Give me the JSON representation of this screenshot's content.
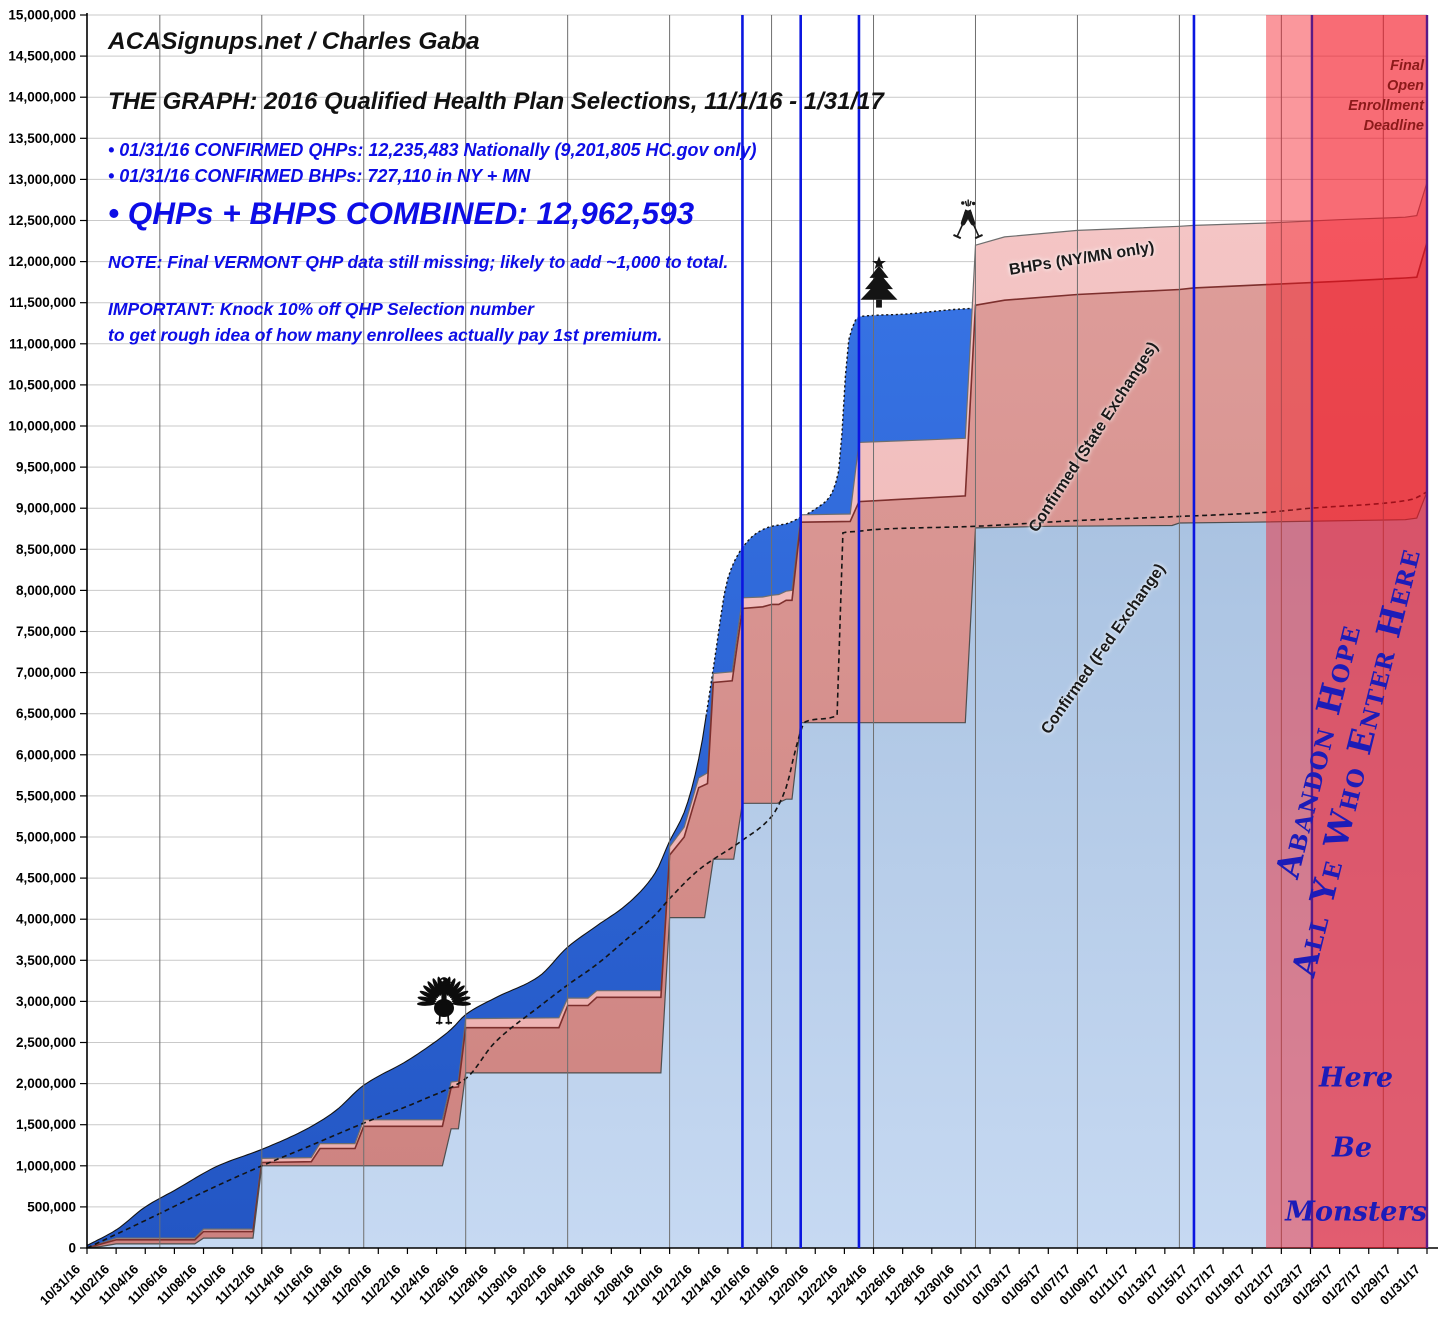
{
  "header": {
    "site_credit": "ACASignups.net / Charles Gaba",
    "main_title": "THE GRAPH: 2016 Qualified Health Plan Selections, 11/1/16 - 1/31/17",
    "bullet_qhp": "• 01/31/16 CONFIRMED QHPs: 12,235,483 Nationally (9,201,805 HC.gov only)",
    "bullet_bhp": "• 01/31/16 CONFIRMED BHPs: 727,110 in NY + MN",
    "bullet_combined": "• QHPs + BHPS COMBINED: 12,962,593",
    "note": "NOTE: Final VERMONT QHP data still missing; likely to add ~1,000 to total.",
    "important_line1": "IMPORTANT: Knock 10% off QHP Selection number",
    "important_line2": "to get rough idea of how many enrollees actually pay 1st premium."
  },
  "annotations": {
    "deadline_label": "Final\nOpen\nEnrollment\nDeadline",
    "abandon_line1": "Abandon Hope",
    "abandon_line2": "All Ye Who Enter Here",
    "monsters_line1": "Here",
    "monsters_line2": "Be",
    "monsters_line3": "Monsters",
    "area_label_bhp": "BHPs (NY/MN only)",
    "area_label_state": "Confirmed (State Exchanges)",
    "area_label_fed": "Confirmed (Fed Exchange)"
  },
  "chart_data": {
    "type": "area",
    "title": "THE GRAPH: 2016 Qualified Health Plan Selections, 11/1/16 - 1/31/17",
    "x_unit": "days since 10/31/16",
    "x_tick_labels": [
      "10/31/16",
      "11/02/16",
      "11/04/16",
      "11/06/16",
      "11/08/16",
      "11/10/16",
      "11/12/16",
      "11/14/16",
      "11/16/16",
      "11/18/16",
      "11/20/16",
      "11/22/16",
      "11/24/16",
      "11/26/16",
      "11/28/16",
      "11/30/16",
      "12/02/16",
      "12/04/16",
      "12/06/16",
      "12/08/16",
      "12/10/16",
      "12/12/16",
      "12/14/16",
      "12/16/16",
      "12/18/16",
      "12/20/16",
      "12/22/16",
      "12/24/16",
      "12/26/16",
      "12/28/16",
      "12/30/16",
      "01/01/17",
      "01/03/17",
      "01/05/17",
      "01/07/17",
      "01/09/17",
      "01/11/17",
      "01/13/17",
      "01/15/17",
      "01/17/17",
      "01/19/17",
      "01/21/17",
      "01/23/17",
      "01/25/17",
      "01/27/17",
      "01/29/17",
      "01/31/17"
    ],
    "x_tick_step_days": 2,
    "y_tick_labels": [
      "15,000,000",
      "14,500,000",
      "14,000,000",
      "13,500,000",
      "13,000,000",
      "12,500,000",
      "12,000,000",
      "11,500,000",
      "11,000,000",
      "10,500,000",
      "10,000,000",
      "9,500,000",
      "9,000,000",
      "8,500,000",
      "8,000,000",
      "7,500,000",
      "7,000,000",
      "6,500,000",
      "6,000,000",
      "5,500,000",
      "5,000,000",
      "4,500,000",
      "4,000,000",
      "3,500,000",
      "3,000,000",
      "2,500,000",
      "2,000,000",
      "1,500,000",
      "1,000,000",
      "500,000",
      "0"
    ],
    "ylim": [
      0,
      15000000
    ],
    "y_gridline_step": 500000,
    "x_gridline_every_days": 7,
    "x_first_gridline_day": 5,
    "values_unit": "millions of QHP selections",
    "series": [
      {
        "name": "Estimated total QHPs (projection)",
        "key": "estimate",
        "points": [
          [
            0,
            0.03
          ],
          [
            2,
            0.22
          ],
          [
            4,
            0.5
          ],
          [
            6,
            0.7
          ],
          [
            9,
            1.0
          ],
          [
            12,
            1.2
          ],
          [
            15,
            1.44
          ],
          [
            17,
            1.66
          ],
          [
            19,
            1.98
          ],
          [
            22,
            2.28
          ],
          [
            24,
            2.52
          ],
          [
            25,
            2.66
          ],
          [
            26,
            2.84
          ],
          [
            28,
            3.04
          ],
          [
            31,
            3.3
          ],
          [
            33,
            3.66
          ],
          [
            35,
            3.92
          ],
          [
            37,
            4.17
          ],
          [
            39,
            4.56
          ],
          [
            40,
            4.95
          ],
          [
            41,
            5.3
          ],
          [
            42,
            5.95
          ],
          [
            43,
            7.05
          ],
          [
            44,
            8.15
          ],
          [
            45,
            8.52
          ],
          [
            46,
            8.7
          ],
          [
            47,
            8.78
          ],
          [
            48,
            8.81
          ],
          [
            49,
            8.89
          ],
          [
            50,
            8.99
          ],
          [
            51,
            9.14
          ],
          [
            51.6,
            9.45
          ],
          [
            52.3,
            11.05
          ],
          [
            53,
            11.33
          ],
          [
            56,
            11.36
          ],
          [
            61,
            11.43
          ],
          [
            92,
            11.45
          ]
        ]
      },
      {
        "name": "BHPs (NY/MN only)",
        "key": "bhp_top",
        "points": [
          [
            0,
            0.0
          ],
          [
            1,
            0.06
          ],
          [
            2,
            0.12
          ],
          [
            7.4,
            0.12
          ],
          [
            8,
            0.23
          ],
          [
            11.4,
            0.23
          ],
          [
            12,
            1.09
          ],
          [
            15.4,
            1.1
          ],
          [
            16,
            1.27
          ],
          [
            18.4,
            1.27
          ],
          [
            19,
            1.56
          ],
          [
            24.4,
            1.56
          ],
          [
            25,
            2.02
          ],
          [
            25.5,
            2.03
          ],
          [
            26,
            2.79
          ],
          [
            32.4,
            2.8
          ],
          [
            33,
            3.04
          ],
          [
            34.4,
            3.04
          ],
          [
            35,
            3.13
          ],
          [
            39.4,
            3.13
          ],
          [
            40,
            4.88
          ],
          [
            41,
            5.12
          ],
          [
            42,
            5.72
          ],
          [
            42.6,
            5.78
          ],
          [
            43,
            6.99
          ],
          [
            44.3,
            7.01
          ],
          [
            45,
            7.91
          ],
          [
            46.4,
            7.92
          ],
          [
            47,
            7.94
          ],
          [
            47.5,
            7.95
          ],
          [
            48,
            7.99
          ],
          [
            48.4,
            8.0
          ],
          [
            49,
            8.92
          ],
          [
            52.4,
            8.93
          ],
          [
            53,
            9.8
          ],
          [
            56,
            9.82
          ],
          [
            60.3,
            9.85
          ],
          [
            61,
            12.2
          ],
          [
            63,
            12.3
          ],
          [
            68,
            12.38
          ],
          [
            75,
            12.43
          ],
          [
            76,
            12.44
          ],
          [
            81,
            12.47
          ],
          [
            86,
            12.51
          ],
          [
            90.5,
            12.54
          ],
          [
            91.3,
            12.56
          ],
          [
            92,
            12.963
          ]
        ]
      },
      {
        "name": "Confirmed (State Exchanges)",
        "key": "state_top",
        "points": [
          [
            0,
            0.0
          ],
          [
            1,
            0.05
          ],
          [
            2,
            0.1
          ],
          [
            7.4,
            0.1
          ],
          [
            8,
            0.2
          ],
          [
            11.4,
            0.2
          ],
          [
            12,
            1.04
          ],
          [
            15.4,
            1.05
          ],
          [
            16,
            1.21
          ],
          [
            18.4,
            1.21
          ],
          [
            19,
            1.48
          ],
          [
            24.4,
            1.48
          ],
          [
            25,
            1.95
          ],
          [
            25.5,
            1.96
          ],
          [
            26,
            2.68
          ],
          [
            32.4,
            2.68
          ],
          [
            33,
            2.95
          ],
          [
            34.4,
            2.95
          ],
          [
            35,
            3.05
          ],
          [
            39.4,
            3.05
          ],
          [
            40,
            4.78
          ],
          [
            41,
            5.0
          ],
          [
            42,
            5.6
          ],
          [
            42.6,
            5.65
          ],
          [
            43,
            6.88
          ],
          [
            44.3,
            6.9
          ],
          [
            45,
            7.78
          ],
          [
            46.4,
            7.8
          ],
          [
            47,
            7.83
          ],
          [
            47.5,
            7.83
          ],
          [
            48,
            7.88
          ],
          [
            48.4,
            7.88
          ],
          [
            49,
            8.83
          ],
          [
            52.4,
            8.84
          ],
          [
            53,
            9.08
          ],
          [
            56,
            9.11
          ],
          [
            60.3,
            9.15
          ],
          [
            61,
            11.47
          ],
          [
            63,
            11.53
          ],
          [
            68,
            11.6
          ],
          [
            75,
            11.66
          ],
          [
            76,
            11.68
          ],
          [
            81,
            11.72
          ],
          [
            86,
            11.76
          ],
          [
            90.5,
            11.8
          ],
          [
            91.3,
            11.81
          ],
          [
            92,
            12.235
          ]
        ]
      },
      {
        "name": "Confirmed (Fed Exchange)",
        "key": "fed",
        "points": [
          [
            0,
            0.0
          ],
          [
            1,
            0.02
          ],
          [
            2,
            0.05
          ],
          [
            7.4,
            0.05
          ],
          [
            8,
            0.12
          ],
          [
            11.4,
            0.12
          ],
          [
            12,
            1.0
          ],
          [
            24.4,
            1.0
          ],
          [
            25,
            1.45
          ],
          [
            25.5,
            1.45
          ],
          [
            26,
            2.13
          ],
          [
            39.4,
            2.13
          ],
          [
            40,
            4.02
          ],
          [
            42.4,
            4.02
          ],
          [
            43,
            4.73
          ],
          [
            44.4,
            4.73
          ],
          [
            45,
            5.41
          ],
          [
            47.4,
            5.41
          ],
          [
            48,
            5.46
          ],
          [
            48.4,
            5.46
          ],
          [
            49,
            6.39
          ],
          [
            60.3,
            6.39
          ],
          [
            61,
            8.76
          ],
          [
            66,
            8.78
          ],
          [
            74.5,
            8.79
          ],
          [
            75,
            8.82
          ],
          [
            80,
            8.83
          ],
          [
            90.5,
            8.86
          ],
          [
            91.3,
            8.88
          ],
          [
            92,
            9.2
          ]
        ]
      },
      {
        "name": "HC.gov estimate (dashed)",
        "key": "dashed",
        "points": [
          [
            0,
            0.0
          ],
          [
            3,
            0.25
          ],
          [
            5,
            0.42
          ],
          [
            8,
            0.68
          ],
          [
            12,
            1.0
          ],
          [
            15,
            1.22
          ],
          [
            19,
            1.52
          ],
          [
            23,
            1.8
          ],
          [
            26,
            2.06
          ],
          [
            28,
            2.5
          ],
          [
            31,
            2.93
          ],
          [
            33,
            3.2
          ],
          [
            35,
            3.45
          ],
          [
            37,
            3.75
          ],
          [
            39,
            4.05
          ],
          [
            40,
            4.25
          ],
          [
            42,
            4.6
          ],
          [
            45,
            4.96
          ],
          [
            47,
            5.25
          ],
          [
            48,
            5.6
          ],
          [
            48.7,
            6.1
          ],
          [
            49.3,
            6.4
          ],
          [
            51.5,
            6.48
          ],
          [
            51.9,
            8.7
          ],
          [
            53,
            8.72
          ],
          [
            54,
            8.74
          ],
          [
            61,
            8.78
          ],
          [
            68,
            8.85
          ],
          [
            75,
            8.9
          ],
          [
            81,
            8.95
          ],
          [
            84,
            9.0
          ],
          [
            89,
            9.06
          ],
          [
            91,
            9.11
          ],
          [
            92,
            9.2
          ]
        ]
      }
    ],
    "event_lines": [
      {
        "day": 45,
        "kind": "blue"
      },
      {
        "day": 49,
        "kind": "blue"
      },
      {
        "day": 53,
        "kind": "blue"
      },
      {
        "day": 76,
        "kind": "blue"
      },
      {
        "day": 84.1,
        "kind": "purple"
      },
      {
        "day": 92,
        "kind": "purple"
      }
    ],
    "deadline_zone": {
      "start_day": 80.95,
      "mid_day": 84.1,
      "end_day": 92
    },
    "colors": {
      "fed_top": "#A9C2E1",
      "fed_bottom": "#C6D9F2",
      "state_top": "#DE9D9A",
      "state_bottom": "#CD827F",
      "bhp_top_c": "#F4C6C6",
      "bhp_bottom": "#ECADAC",
      "est_top": "#3672E3",
      "est_bottom": "#2356C4",
      "blue_line": "#0b16e0",
      "purple_line": "#5a1a86",
      "zone_a": "rgba(245,25,35,0.45)",
      "zone_b": "rgba(245,5,25,0.29)",
      "hgrid": "#c9c9c9",
      "vgrid": "#6f6f6f",
      "blue_text": "#0d0de6",
      "darkred_text": "#8c1a1a",
      "fancy_blue": "#1c1cb8"
    }
  }
}
